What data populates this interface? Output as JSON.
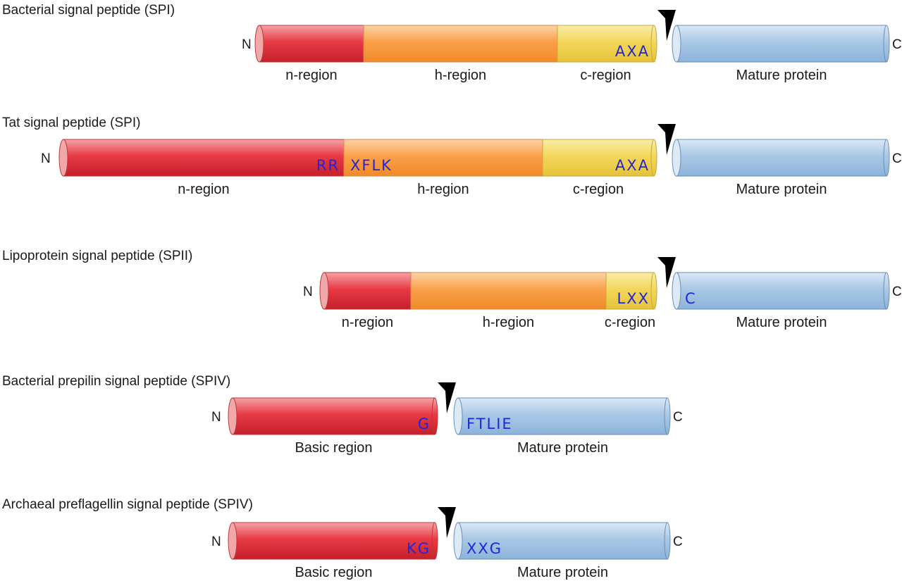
{
  "colors": {
    "n_region": "#e0303a",
    "h_region": "#f99a3a",
    "c_region": "#f0d24a",
    "mature": "#9cc0e2",
    "motif_text": "#2326d6",
    "cleavage_arrow": "#000000"
  },
  "terminal_labels": {
    "n": "N",
    "c": "C"
  },
  "icons": {
    "cleavage": "cleavage-site-arrowhead-icon"
  },
  "rows": [
    {
      "title": "Bacterial signal peptide (SPI)",
      "segments": [
        {
          "kind": "n_region",
          "label": "n-region",
          "motif_left": "",
          "motif_right": ""
        },
        {
          "kind": "h_region",
          "label": "h-region",
          "motif_left": "",
          "motif_right": ""
        },
        {
          "kind": "c_region",
          "label": "c-region",
          "motif_left": "",
          "motif_right": "AXA"
        }
      ],
      "mature": {
        "label": "Mature protein",
        "motif_left": ""
      }
    },
    {
      "title": "Tat signal peptide (SPI)",
      "segments": [
        {
          "kind": "n_region",
          "label": "n-region",
          "motif_left": "",
          "motif_right": "RR"
        },
        {
          "kind": "h_region",
          "label": "h-region",
          "motif_left": "XFLK",
          "motif_right": ""
        },
        {
          "kind": "c_region",
          "label": "c-region",
          "motif_left": "",
          "motif_right": "AXA"
        }
      ],
      "mature": {
        "label": "Mature protein",
        "motif_left": ""
      }
    },
    {
      "title": "Lipoprotein signal peptide (SPII)",
      "segments": [
        {
          "kind": "n_region",
          "label": "n-region",
          "motif_left": "",
          "motif_right": ""
        },
        {
          "kind": "h_region",
          "label": "h-region",
          "motif_left": "",
          "motif_right": ""
        },
        {
          "kind": "c_region",
          "label": "c-region",
          "motif_left": "",
          "motif_right": "LXX"
        }
      ],
      "mature": {
        "label": "Mature protein",
        "motif_left": "C"
      }
    },
    {
      "title": "Bacterial prepilin signal peptide (SPIV)",
      "segments": [
        {
          "kind": "n_region",
          "label": "Basic region",
          "motif_left": "",
          "motif_right": "G"
        }
      ],
      "mature": {
        "label": "Mature protein",
        "motif_left": "FTLIE"
      }
    },
    {
      "title": "Archaeal preflagellin signal peptide (SPIV)",
      "segments": [
        {
          "kind": "n_region",
          "label": "Basic region",
          "motif_left": "",
          "motif_right": "KG"
        }
      ],
      "mature": {
        "label": "Mature protein",
        "motif_left": "XXG"
      }
    }
  ]
}
